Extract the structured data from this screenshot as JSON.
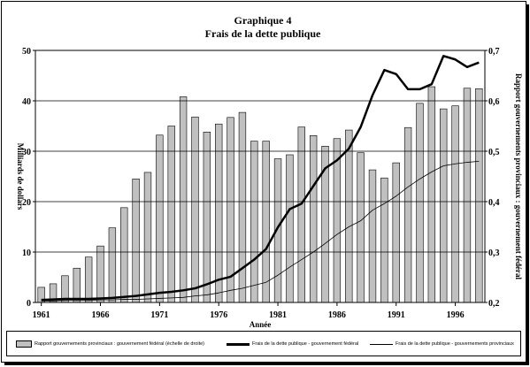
{
  "title_line1": "Graphique 4",
  "title_line2": "Frais de la dette publique",
  "chart_data": {
    "type": "bar+line",
    "title": "Graphique 4 / Frais de la dette publique",
    "xlabel": "Année",
    "ylabel": "Milliards de dollars",
    "y2label": "Rapport gouvernements provinciaux : gouvernement fédéral",
    "ylim": [
      0,
      50
    ],
    "y2lim": [
      0.2,
      0.7
    ],
    "yticks": [
      "0",
      "10",
      "20",
      "30",
      "40",
      "50"
    ],
    "y2ticks": [
      "0,2",
      "0,3",
      "0,4",
      "0,5",
      "0,6",
      "0,7"
    ],
    "xticks": [
      "1961",
      "1966",
      "1971",
      "1976",
      "1981",
      "1986",
      "1991",
      "1996"
    ],
    "grid": "horizontal",
    "legend_position": "bottom",
    "x": [
      1961,
      1962,
      1963,
      1964,
      1965,
      1966,
      1967,
      1968,
      1969,
      1970,
      1971,
      1972,
      1973,
      1974,
      1975,
      1976,
      1977,
      1978,
      1979,
      1980,
      1981,
      1982,
      1983,
      1984,
      1985,
      1986,
      1987,
      1988,
      1989,
      1990,
      1991,
      1992,
      1993,
      1994,
      1995,
      1996,
      1997,
      1998
    ],
    "series": [
      {
        "name": "Rapport gouvernements provinciaux : gouvernement fédéral (échelle de droite)",
        "kind": "bar",
        "axis": "right",
        "color": "#c0c0c0",
        "values": [
          0.23,
          0.237,
          0.253,
          0.268,
          0.29,
          0.312,
          0.348,
          0.388,
          0.445,
          0.458,
          0.532,
          0.55,
          0.608,
          0.568,
          0.538,
          0.554,
          0.567,
          0.577,
          0.52,
          0.52,
          0.485,
          0.493,
          0.548,
          0.531,
          0.51,
          0.525,
          0.542,
          0.497,
          0.463,
          0.447,
          0.477,
          0.547,
          0.595,
          0.628,
          0.584,
          0.59,
          0.625,
          0.624
        ]
      },
      {
        "name": "Frais de la dette publique - gouvernement fédéral",
        "kind": "line",
        "axis": "left",
        "color": "#000000",
        "width": 2.5,
        "values": [
          0.5,
          0.6,
          0.7,
          0.7,
          0.7,
          0.8,
          0.9,
          1.1,
          1.3,
          1.6,
          1.9,
          2.1,
          2.4,
          2.8,
          3.6,
          4.5,
          5.1,
          6.8,
          8.5,
          10.6,
          14.9,
          18.5,
          19.6,
          23.1,
          26.6,
          28.2,
          30.5,
          34.8,
          41.1,
          46.1,
          45.3,
          42.3,
          42.3,
          43.3,
          48.9,
          48.2,
          46.7,
          47.6
        ]
      },
      {
        "name": "Frais de la dette publique - gouvernements provinciaux",
        "kind": "line",
        "axis": "left",
        "color": "#000000",
        "width": 0.8,
        "values": [
          0.3,
          0.3,
          0.4,
          0.4,
          0.4,
          0.5,
          0.5,
          0.6,
          0.6,
          0.7,
          0.8,
          0.9,
          1.0,
          1.3,
          1.5,
          1.9,
          2.4,
          2.8,
          3.4,
          4.0,
          5.4,
          7.0,
          8.5,
          10.0,
          11.7,
          13.5,
          15.0,
          16.2,
          18.3,
          19.6,
          21.1,
          22.9,
          24.5,
          25.9,
          27.1,
          27.5,
          27.8,
          28.0
        ]
      }
    ]
  },
  "legend": {
    "bar_label": "Rapport gouvernements provinciaux : gouvernement fédéral (échelle de droite)",
    "thick_label": "Frais de la dette publique - gouvernement fédéral",
    "thin_label": "Frais de la dette publique - gouvernements provinciaux"
  }
}
